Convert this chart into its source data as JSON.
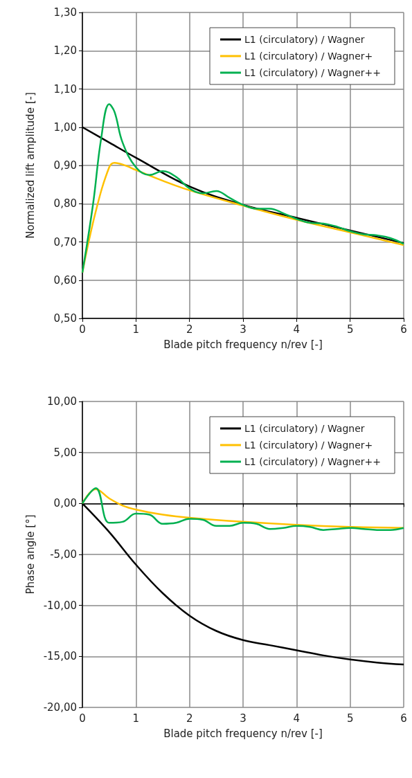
{
  "chart_data": [
    {
      "type": "line",
      "ylabel": "Normalized lift amplitude [-]",
      "xlabel": "Blade pitch frequency n/rev [-]",
      "xlim": [
        0,
        6
      ],
      "xticks": [
        0,
        1,
        2,
        3,
        4,
        5,
        6
      ],
      "ylim": [
        0.5,
        1.3
      ],
      "yticks": [
        {
          "value": 0.5,
          "label": "0,50"
        },
        {
          "value": 0.6,
          "label": "0,60"
        },
        {
          "value": 0.7,
          "label": "0,70"
        },
        {
          "value": 0.8,
          "label": "0,80"
        },
        {
          "value": 0.9,
          "label": "0,90"
        },
        {
          "value": 1.0,
          "label": "1,00"
        },
        {
          "value": 1.1,
          "label": "1,10"
        },
        {
          "value": 1.2,
          "label": "1,20"
        },
        {
          "value": 1.3,
          "label": "1,30"
        }
      ],
      "grid": true,
      "legend": "top right",
      "marker": "none",
      "line_style": "solid",
      "series": [
        {
          "name": "L1 (circulatory) / Wagner",
          "color": "#000000",
          "x": [
            0,
            0.5,
            1,
            2,
            3,
            4,
            5,
            6
          ],
          "values": [
            1.0,
            0.96,
            0.92,
            0.845,
            0.797,
            0.763,
            0.73,
            0.697
          ]
        },
        {
          "name": "L1 (circulatory) / Wagner+",
          "color": "#ffc000",
          "x": [
            0,
            0.25,
            0.5,
            0.6,
            0.8,
            1,
            1.5,
            2,
            3,
            4,
            5,
            6
          ],
          "values": [
            0.62,
            0.78,
            0.895,
            0.907,
            0.9,
            0.888,
            0.86,
            0.835,
            0.795,
            0.758,
            0.725,
            0.692
          ]
        },
        {
          "name": "L1 (circulatory) / Wagner++",
          "color": "#00b050",
          "x": [
            0,
            0.2,
            0.35,
            0.5,
            0.6,
            0.75,
            1,
            1.25,
            1.5,
            1.75,
            2,
            2.25,
            2.5,
            2.75,
            3,
            3.25,
            3.5,
            3.75,
            4,
            4.25,
            4.5,
            4.75,
            5,
            5.25,
            5.5,
            5.75,
            6
          ],
          "values": [
            0.62,
            0.8,
            0.97,
            1.06,
            1.04,
            0.96,
            0.895,
            0.875,
            0.885,
            0.87,
            0.84,
            0.827,
            0.833,
            0.815,
            0.797,
            0.787,
            0.787,
            0.775,
            0.76,
            0.75,
            0.748,
            0.74,
            0.728,
            0.72,
            0.717,
            0.71,
            0.695
          ]
        }
      ]
    },
    {
      "type": "line",
      "ylabel": "Phase angle [°]",
      "xlabel": "Blade pitch frequency n/rev [-]",
      "xlim": [
        0,
        6
      ],
      "xticks": [
        0,
        1,
        2,
        3,
        4,
        5,
        6
      ],
      "ylim": [
        -20,
        10
      ],
      "yticks": [
        {
          "value": -20,
          "label": "-20,00"
        },
        {
          "value": -15,
          "label": "-15,00"
        },
        {
          "value": -10,
          "label": "-10,00"
        },
        {
          "value": -5,
          "label": "-5,00"
        },
        {
          "value": 0,
          "label": "0,00"
        },
        {
          "value": 5,
          "label": "5,00"
        },
        {
          "value": 10,
          "label": "10,00"
        }
      ],
      "grid": true,
      "legend": "top right",
      "marker": "none",
      "line_style": "solid",
      "series": [
        {
          "name": "L1 (circulatory) / Wagner",
          "color": "#000000",
          "x": [
            0,
            0.5,
            1,
            1.5,
            2,
            2.5,
            3,
            3.5,
            4,
            4.5,
            5,
            5.5,
            6
          ],
          "values": [
            0,
            -2.8,
            -6.0,
            -8.8,
            -11.0,
            -12.5,
            -13.4,
            -13.9,
            -14.4,
            -14.9,
            -15.3,
            -15.6,
            -15.8
          ]
        },
        {
          "name": "L1 (circulatory) / Wagner+",
          "color": "#ffc000",
          "x": [
            0,
            0.25,
            0.5,
            0.75,
            1,
            1.5,
            2,
            3,
            4,
            5,
            6
          ],
          "values": [
            0,
            1.4,
            0.5,
            -0.2,
            -0.6,
            -1.1,
            -1.4,
            -1.8,
            -2.1,
            -2.3,
            -2.4
          ]
        },
        {
          "name": "L1 (circulatory) / Wagner++",
          "color": "#00b050",
          "x": [
            0,
            0.25,
            0.5,
            0.75,
            1,
            1.25,
            1.5,
            1.75,
            2,
            2.25,
            2.5,
            2.75,
            3,
            3.25,
            3.5,
            3.75,
            4,
            4.25,
            4.5,
            4.75,
            5,
            5.25,
            5.5,
            5.75,
            6
          ],
          "values": [
            0,
            1.5,
            -1.9,
            -1.8,
            -1.0,
            -1.1,
            -2.0,
            -1.9,
            -1.5,
            -1.6,
            -2.2,
            -2.2,
            -1.9,
            -2.0,
            -2.5,
            -2.4,
            -2.2,
            -2.3,
            -2.6,
            -2.5,
            -2.4,
            -2.5,
            -2.6,
            -2.6,
            -2.4
          ]
        }
      ]
    }
  ]
}
